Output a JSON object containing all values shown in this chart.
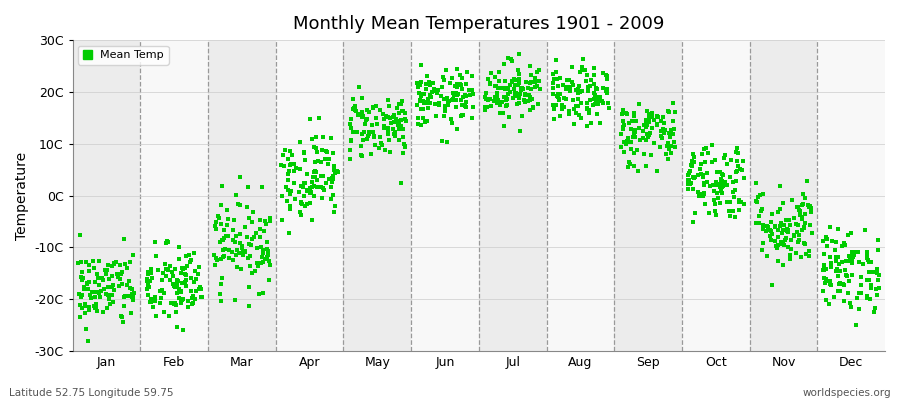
{
  "title": "Monthly Mean Temperatures 1901 - 2009",
  "ylabel": "Temperature",
  "xlabel_bottom_left": "Latitude 52.75 Longitude 59.75",
  "xlabel_bottom_right": "worldspecies.org",
  "legend_label": "Mean Temp",
  "marker_color": "#00cc00",
  "background_color": "#ffffff",
  "plot_bg_bands": [
    "#ececec",
    "#f8f8f8"
  ],
  "ylim": [
    -30,
    30
  ],
  "yticks": [
    -30,
    -20,
    -10,
    0,
    10,
    20,
    30
  ],
  "ytick_labels": [
    "-30C",
    "-20C",
    "-10C",
    "0C",
    "10C",
    "20C",
    "30C"
  ],
  "months": [
    "Jan",
    "Feb",
    "Mar",
    "Apr",
    "May",
    "Jun",
    "Jul",
    "Aug",
    "Sep",
    "Oct",
    "Nov",
    "Dec"
  ],
  "month_means": [
    -18.0,
    -17.5,
    -9.0,
    4.0,
    13.5,
    18.5,
    20.5,
    19.0,
    12.0,
    3.0,
    -6.0,
    -14.5
  ],
  "month_stds": [
    3.8,
    4.0,
    4.5,
    4.2,
    3.2,
    2.8,
    2.8,
    2.8,
    3.2,
    3.8,
    4.0,
    4.0
  ],
  "n_years": 109,
  "seed": 42,
  "marker_size": 12,
  "dpi": 100,
  "figsize": [
    9.0,
    4.0
  ]
}
